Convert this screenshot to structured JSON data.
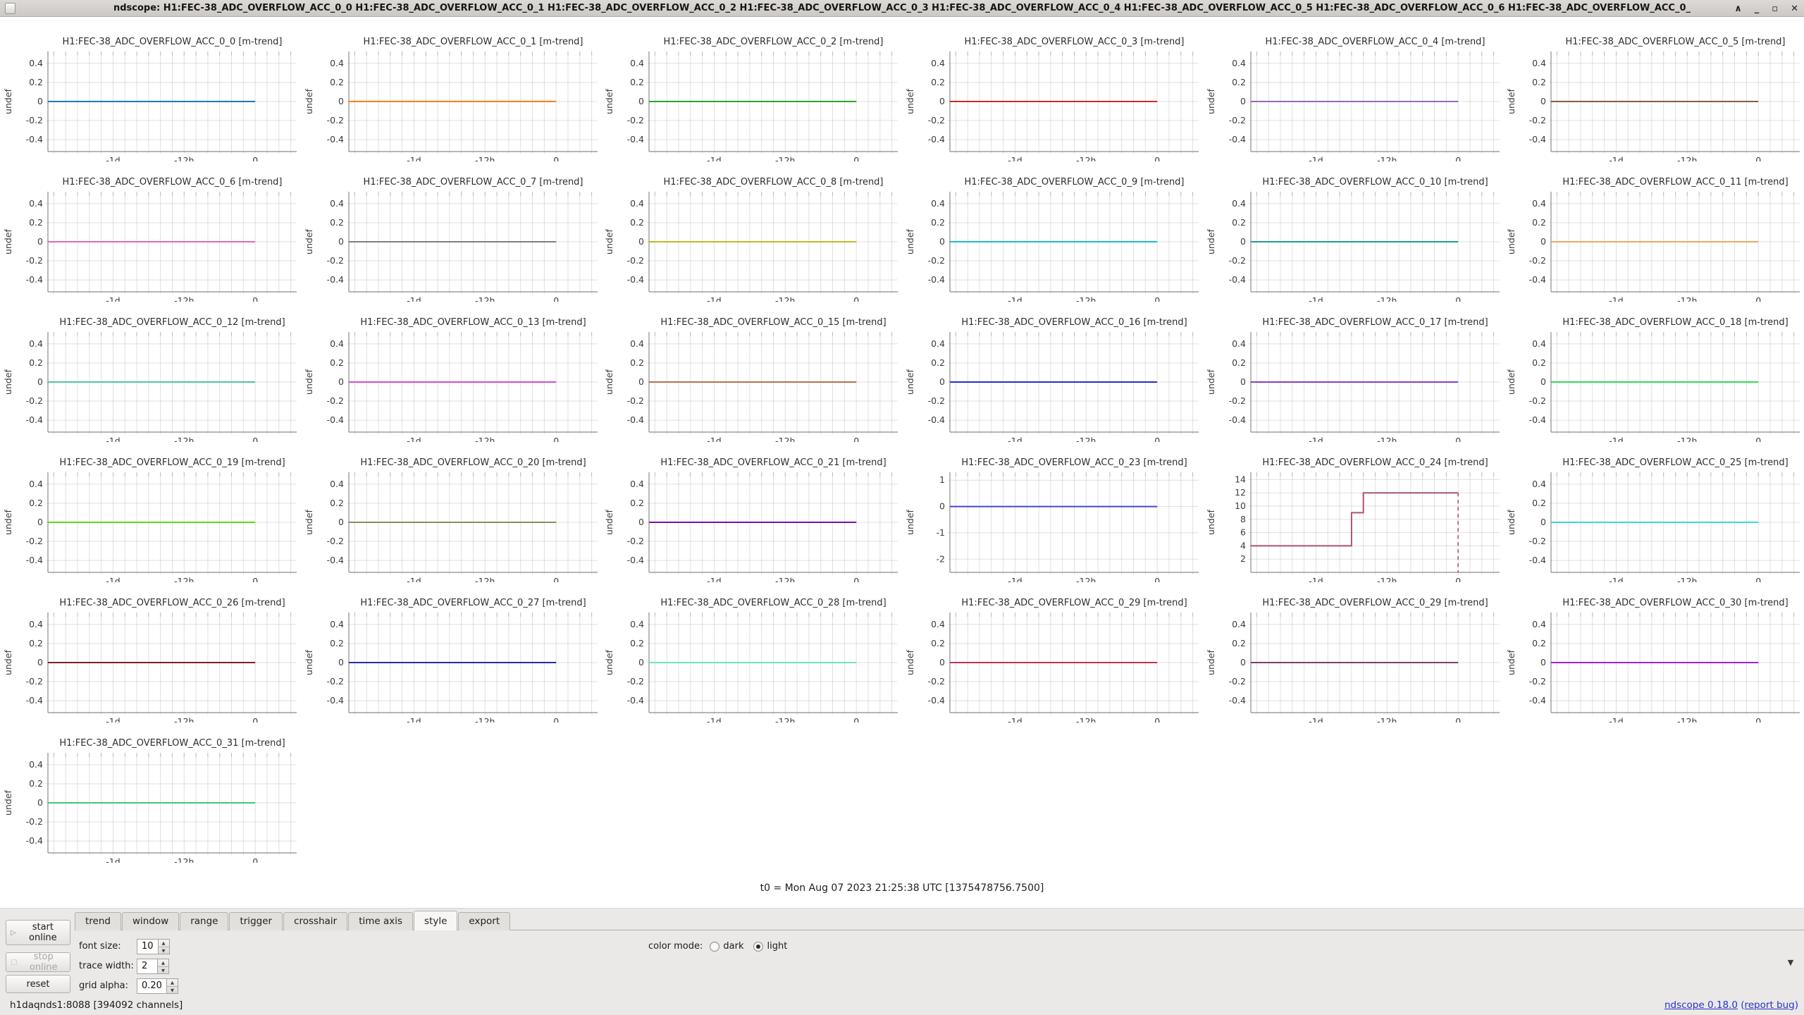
{
  "window": {
    "title": "ndscope: H1:FEC-38_ADC_OVERFLOW_ACC_0_0 H1:FEC-38_ADC_OVERFLOW_ACC_0_1 H1:FEC-38_ADC_OVERFLOW_ACC_0_2 H1:FEC-38_ADC_OVERFLOW_ACC_0_3 H1:FEC-38_ADC_OVERFLOW_ACC_0_4 H1:FEC-38_ADC_OVERFLOW_ACC_0_5 H1:FEC-38_ADC_OVERFLOW_ACC_0_6 H1:FEC-38_ADC_OVERFLOW_ACC_0_",
    "controls": {
      "shade": "∧",
      "minimize": "_",
      "maximize": "▫",
      "close": "✕"
    }
  },
  "t0_label": "t0 = Mon Aug 07 2023 21:25:38 UTC [1375478756.7500]",
  "icons": {
    "spin_up": "▲",
    "spin_down": "▼",
    "play": "▷",
    "stop": "□",
    "expand": "▼"
  },
  "chart_data": {
    "type": "line",
    "grid": true,
    "ylabel": "undef",
    "x_range_hours": [
      -35,
      7
    ],
    "grid_hours_step": 2,
    "x_ticks": [
      {
        "label": "-1d",
        "hours": -24
      },
      {
        "label": "-12h",
        "hours": -12
      },
      {
        "label": "0",
        "hours": 0
      }
    ],
    "default_y": {
      "range": [
        -0.525,
        0.525
      ],
      "ticks": [
        0.4,
        0.2,
        0,
        -0.2,
        -0.4
      ]
    },
    "default_points": [
      [
        -35,
        0
      ],
      [
        0,
        0
      ]
    ],
    "plots": [
      {
        "title": "H1:FEC-38_ADC_OVERFLOW_ACC_0_0 [m-trend]",
        "color": "#1f77b4"
      },
      {
        "title": "H1:FEC-38_ADC_OVERFLOW_ACC_0_1 [m-trend]",
        "color": "#ff7f0e"
      },
      {
        "title": "H1:FEC-38_ADC_OVERFLOW_ACC_0_2 [m-trend]",
        "color": "#2ca02c"
      },
      {
        "title": "H1:FEC-38_ADC_OVERFLOW_ACC_0_3 [m-trend]",
        "color": "#d62728"
      },
      {
        "title": "H1:FEC-38_ADC_OVERFLOW_ACC_0_4 [m-trend]",
        "color": "#9467bd"
      },
      {
        "title": "H1:FEC-38_ADC_OVERFLOW_ACC_0_5 [m-trend]",
        "color": "#8c564b"
      },
      {
        "title": "H1:FEC-38_ADC_OVERFLOW_ACC_0_6 [m-trend]",
        "color": "#e368bb"
      },
      {
        "title": "H1:FEC-38_ADC_OVERFLOW_ACC_0_7 [m-trend]",
        "color": "#7f7f7f"
      },
      {
        "title": "H1:FEC-38_ADC_OVERFLOW_ACC_0_8 [m-trend]",
        "color": "#bcbd22"
      },
      {
        "title": "H1:FEC-38_ADC_OVERFLOW_ACC_0_9 [m-trend]",
        "color": "#17becf"
      },
      {
        "title": "H1:FEC-38_ADC_OVERFLOW_ACC_0_10 [m-trend]",
        "color": "#1f9e89"
      },
      {
        "title": "H1:FEC-38_ADC_OVERFLOW_ACC_0_11 [m-trend]",
        "color": "#eca85f"
      },
      {
        "title": "H1:FEC-38_ADC_OVERFLOW_ACC_0_12 [m-trend]",
        "color": "#4fc79a"
      },
      {
        "title": "H1:FEC-38_ADC_OVERFLOW_ACC_0_13 [m-trend]",
        "color": "#cf4cd0"
      },
      {
        "title": "H1:FEC-38_ADC_OVERFLOW_ACC_0_15 [m-trend]",
        "color": "#b5714c"
      },
      {
        "title": "H1:FEC-38_ADC_OVERFLOW_ACC_0_16 [m-trend]",
        "color": "#2a2ad6"
      },
      {
        "title": "H1:FEC-38_ADC_OVERFLOW_ACC_0_17 [m-trend]",
        "color": "#8a3fb0"
      },
      {
        "title": "H1:FEC-38_ADC_OVERFLOW_ACC_0_18 [m-trend]",
        "color": "#35d952"
      },
      {
        "title": "H1:FEC-38_ADC_OVERFLOW_ACC_0_19 [m-trend]",
        "color": "#55dd22"
      },
      {
        "title": "H1:FEC-38_ADC_OVERFLOW_ACC_0_20 [m-trend]",
        "color": "#8b8b63"
      },
      {
        "title": "H1:FEC-38_ADC_OVERFLOW_ACC_0_21 [m-trend]",
        "color": "#7a10b0"
      },
      {
        "title": "H1:FEC-38_ADC_OVERFLOW_ACC_0_23 [m-trend]",
        "color": "#4343dd",
        "y_range": [
          -2.5,
          1.3
        ],
        "y_ticks": [
          1,
          0,
          -1,
          -2
        ]
      },
      {
        "title": "H1:FEC-38_ADC_OVERFLOW_ACC_0_24 [m-trend]",
        "color": "#ad5273",
        "y_range": [
          0,
          15.1
        ],
        "y_ticks": [
          14,
          12,
          10,
          8,
          6,
          4,
          2
        ],
        "points": [
          [
            -35,
            4
          ],
          [
            -18,
            4
          ],
          [
            -18,
            9
          ],
          [
            -16,
            9
          ],
          [
            -16,
            12
          ],
          [
            0,
            12
          ]
        ],
        "drop": {
          "x": 0,
          "from": 12
        }
      },
      {
        "title": "H1:FEC-38_ADC_OVERFLOW_ACC_0_25 [m-trend]",
        "color": "#3fd8d8"
      },
      {
        "title": "H1:FEC-38_ADC_OVERFLOW_ACC_0_26 [m-trend]",
        "color": "#7c1f30"
      },
      {
        "title": "H1:FEC-38_ADC_OVERFLOW_ACC_0_27 [m-trend]",
        "color": "#2a2a9e"
      },
      {
        "title": "H1:FEC-38_ADC_OVERFLOW_ACC_0_28 [m-trend]",
        "color": "#6be6c8"
      },
      {
        "title": "H1:FEC-38_ADC_OVERFLOW_ACC_0_29 [m-trend]",
        "color": "#c23350"
      },
      {
        "title": "H1:FEC-38_ADC_OVERFLOW_ACC_0_29 [m-trend]",
        "color": "#7e3a74"
      },
      {
        "title": "H1:FEC-38_ADC_OVERFLOW_ACC_0_30 [m-trend]",
        "color": "#9921f5"
      },
      {
        "title": "H1:FEC-38_ADC_OVERFLOW_ACC_0_31 [m-trend]",
        "color": "#3bcb76"
      }
    ]
  },
  "toolbar": {
    "start_button": "start online",
    "stop_button": "stop online",
    "reset_button": "reset",
    "tabs": [
      "trend",
      "window",
      "range",
      "trigger",
      "crosshair",
      "time axis",
      "style",
      "export"
    ],
    "active_tab": "style",
    "style_panel": {
      "font_size_label": "font size:",
      "font_size_value": "10",
      "trace_width_label": "trace width:",
      "trace_width_value": "2",
      "grid_alpha_label": "grid alpha:",
      "grid_alpha_value": "0.20",
      "color_mode_label": "color mode:",
      "color_mode_options": [
        "dark",
        "light"
      ],
      "color_mode_selected": "light"
    }
  },
  "statusbar": {
    "server": "h1daqnds1:8088  [394092 channels]",
    "version_link": "ndscope 0.18.0",
    "bug_link_open": "(",
    "bug_link": "report bug",
    "bug_link_close": ")"
  }
}
